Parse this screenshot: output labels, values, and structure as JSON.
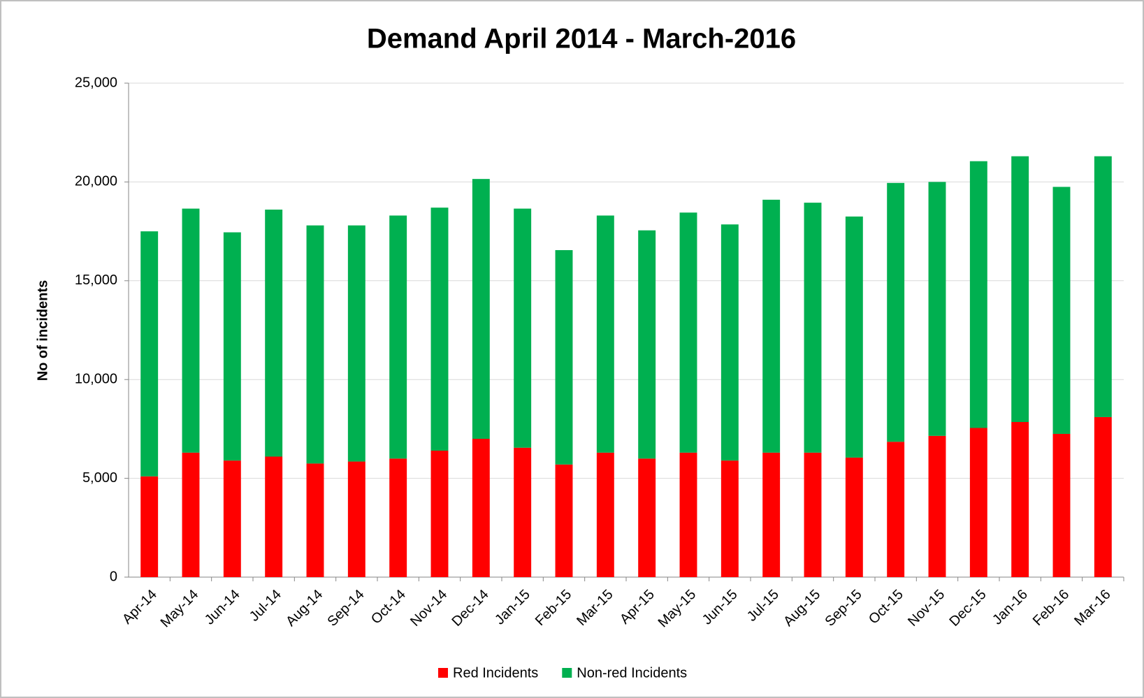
{
  "chart_data": {
    "type": "stacked_bar",
    "title": "Demand April 2014 - March-2016",
    "y_label": "No of incidents",
    "categories": [
      "Apr-14",
      "May-14",
      "Jun-14",
      "Jul-14",
      "Aug-14",
      "Sep-14",
      "Oct-14",
      "Nov-14",
      "Dec-14",
      "Jan-15",
      "Feb-15",
      "Mar-15",
      "Apr-15",
      "May-15",
      "Jun-15",
      "Jul-15",
      "Aug-15",
      "Sep-15",
      "Oct-15",
      "Nov-15",
      "Dec-15",
      "Jan-16",
      "Feb-16",
      "Mar-16"
    ],
    "series": [
      {
        "name": "Red Incidents",
        "color": "#ff0000",
        "values": [
          5100,
          6300,
          5900,
          6100,
          5750,
          5850,
          6000,
          6400,
          7000,
          6550,
          5700,
          6300,
          6000,
          6300,
          5900,
          6300,
          6300,
          6050,
          6850,
          7150,
          7550,
          7850,
          7250,
          8100
        ]
      },
      {
        "name": "Non-red Incidents",
        "color": "#00b050",
        "values": [
          12400,
          12350,
          11550,
          12500,
          12050,
          11950,
          12300,
          12300,
          13150,
          12100,
          10850,
          12000,
          11550,
          12150,
          11950,
          12800,
          12650,
          12200,
          13100,
          12850,
          13500,
          13450,
          12500,
          13200
        ]
      }
    ],
    "ylim": [
      0,
      25000
    ],
    "yticks": [
      0,
      {
        "value": 5000,
        "label": "5,000"
      },
      {
        "value": 10000,
        "label": "10,000"
      },
      {
        "value": 15000,
        "label": "15,000"
      },
      {
        "value": 20000,
        "label": "20,000"
      },
      {
        "value": 25000,
        "label": "25,000"
      }
    ],
    "grid": true,
    "legend": "bottom"
  }
}
